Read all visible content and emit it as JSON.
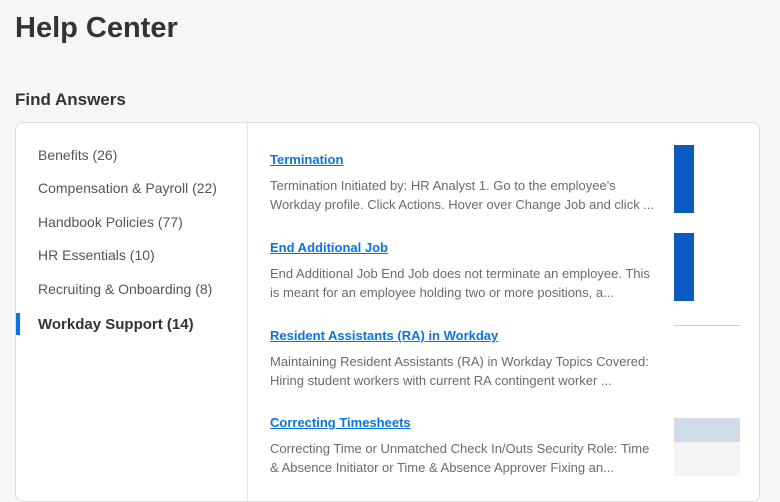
{
  "page": {
    "title": "Help Center",
    "section": "Find Answers"
  },
  "categories": [
    {
      "label": "Benefits (26)"
    },
    {
      "label": "Compensation & Payroll (22)"
    },
    {
      "label": "Handbook Policies (77)"
    },
    {
      "label": "HR Essentials (10)"
    },
    {
      "label": "Recruiting & Onboarding (8)"
    },
    {
      "label": "Workday Support (14)",
      "active": true
    }
  ],
  "results": [
    {
      "title": "Termination",
      "snippet": "Termination Initiated by: HR Analyst 1. Go to the employee's Workday profile. Click Actions. Hover over Change Job and click ..."
    },
    {
      "title": "End Additional Job",
      "snippet": "End Additional Job End Job does not terminate an employee. This is meant for an employee holding two or more positions, a..."
    },
    {
      "title": "Resident Assistants (RA) in Workday",
      "snippet": "Maintaining Resident Assistants (RA) in Workday Topics Covered: Hiring student workers with current RA contingent worker ..."
    },
    {
      "title": "Correcting Timesheets",
      "snippet": "Correcting Time or Unmatched Check In/Outs Security Role: Time & Absence Initiator or Time & Absence Approver Fixing an..."
    }
  ],
  "colors": {
    "accent": "#0875e1"
  }
}
